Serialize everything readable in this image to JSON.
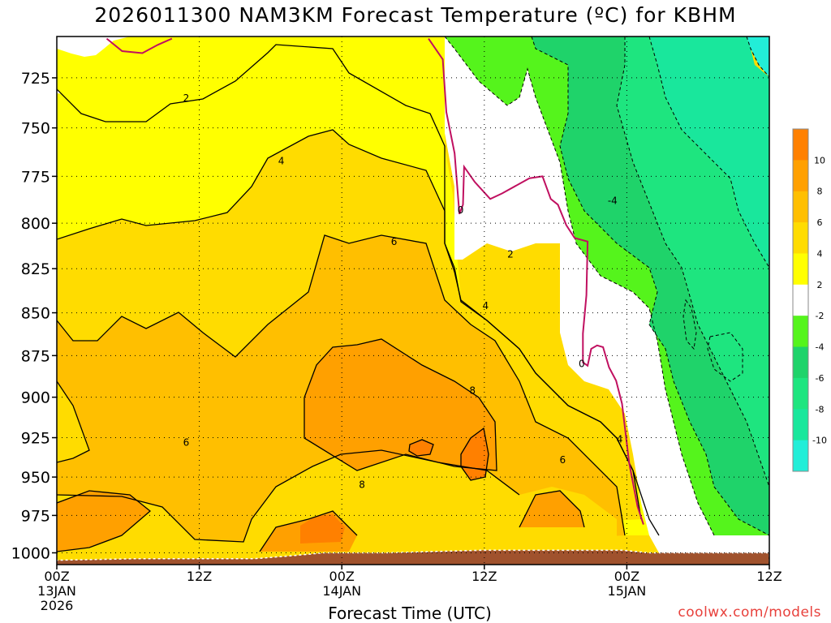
{
  "title": "2026011300 NAM3KM Forecast Temperature (ºC) for KBHM",
  "xlabel": "Forecast Time (UTC)",
  "credit": "coolwx.com/models",
  "colors": {
    "le_m10": "#22eed8",
    "m10_m8": "#19e79c",
    "m8_m6": "#1ee57f",
    "m6_m4": "#1fd36a",
    "m4_m2": "#55f41c",
    "m2_2": "#ffffff",
    "2_4": "#ffff00",
    "4_6": "#ffdc00",
    "6_8": "#ffbf00",
    "8_10": "#ffa000",
    "ge_10": "#ff8000",
    "ground": "#a0522d",
    "freezing_line": "#c01060"
  },
  "chart_data": {
    "type": "heatmap",
    "title": "2026011300 NAM3KM Forecast Temperature (ºC) for KBHM",
    "xlabel": "Forecast Time (UTC)",
    "ylabel": "",
    "x_ticks": [
      {
        "hour": 0,
        "label": "00Z",
        "sub": [
          "13JAN",
          "2026"
        ]
      },
      {
        "hour": 12,
        "label": "12Z",
        "sub": []
      },
      {
        "hour": 24,
        "label": "00Z",
        "sub": [
          "14JAN"
        ]
      },
      {
        "hour": 36,
        "label": "12Z",
        "sub": []
      },
      {
        "hour": 48,
        "label": "00Z",
        "sub": [
          "15JAN"
        ]
      },
      {
        "hour": 60,
        "label": "12Z",
        "sub": []
      }
    ],
    "xlim": [
      0,
      60
    ],
    "y_ticks": [
      725,
      750,
      775,
      800,
      825,
      850,
      875,
      900,
      925,
      950,
      975,
      1000
    ],
    "ylim_hPa": [
      705,
      1008
    ],
    "y_scale": "log",
    "colorbar": {
      "labels": [
        10,
        8,
        6,
        4,
        2,
        -2,
        -4,
        -6,
        -8,
        -10
      ],
      "bands": [
        "ge_10",
        "8_10",
        "6_8",
        "4_6",
        "2_4",
        "m2_2",
        "m4_m2",
        "m6_m4",
        "m8_m6",
        "m10_m8",
        "le_m10"
      ]
    },
    "contour_labels": [
      {
        "value": "2",
        "hour": 10.9,
        "p": 735
      },
      {
        "value": "4",
        "hour": 18.9,
        "p": 767
      },
      {
        "value": "6",
        "hour": 28.4,
        "p": 810
      },
      {
        "value": "8",
        "hour": 25.7,
        "p": 955
      },
      {
        "value": "6",
        "hour": 10.9,
        "p": 928
      },
      {
        "value": "0",
        "hour": 34.0,
        "p": 793
      },
      {
        "value": "2",
        "hour": 38.2,
        "p": 817
      },
      {
        "value": "4",
        "hour": 36.1,
        "p": 846
      },
      {
        "value": "8",
        "hour": 35.0,
        "p": 896
      },
      {
        "value": "6",
        "hour": 42.6,
        "p": 939
      },
      {
        "value": "4",
        "hour": 47.4,
        "p": 926
      },
      {
        "value": "0",
        "hour": 44.2,
        "p": 880
      },
      {
        "value": "-4",
        "hour": 46.8,
        "p": 788
      }
    ],
    "surface_pressure": [
      [
        0,
        1005
      ],
      [
        6.5,
        1004
      ],
      [
        16.6,
        1004
      ],
      [
        19.8,
        1002
      ],
      [
        22.5,
        1000
      ],
      [
        27.8,
        1000
      ],
      [
        30.6,
        999.4
      ],
      [
        33.8,
        998.7
      ],
      [
        36.0,
        998.2
      ],
      [
        47.6,
        998.2
      ],
      [
        49.8,
        1000
      ],
      [
        60,
        1000
      ]
    ],
    "freezing_line": [
      [
        4.2,
        706
      ],
      [
        5.5,
        712
      ],
      [
        7.2,
        713
      ],
      [
        8.5,
        709
      ],
      [
        9.7,
        706
      ]
    ],
    "freezing_line_2": [
      [
        31.3,
        706
      ],
      [
        32.5,
        716
      ],
      [
        32.8,
        742
      ],
      [
        33.5,
        763
      ],
      [
        33.9,
        795
      ],
      [
        34.2,
        790
      ],
      [
        34.3,
        770
      ],
      [
        35.2,
        778
      ],
      [
        36.5,
        787
      ],
      [
        37.5,
        784
      ],
      [
        39.8,
        776
      ],
      [
        40.9,
        775
      ],
      [
        41.6,
        787
      ],
      [
        42.2,
        790
      ],
      [
        42.9,
        801
      ],
      [
        43.6,
        808
      ],
      [
        44.7,
        810
      ],
      [
        44.6,
        840
      ],
      [
        44.3,
        862
      ],
      [
        44.3,
        879
      ],
      [
        44.7,
        881
      ],
      [
        45.0,
        871
      ],
      [
        45.5,
        869
      ],
      [
        46.0,
        870
      ],
      [
        46.5,
        882
      ],
      [
        47.1,
        890
      ],
      [
        47.6,
        904
      ],
      [
        48.2,
        941
      ],
      [
        48.9,
        969
      ],
      [
        49.4,
        981
      ]
    ]
  }
}
